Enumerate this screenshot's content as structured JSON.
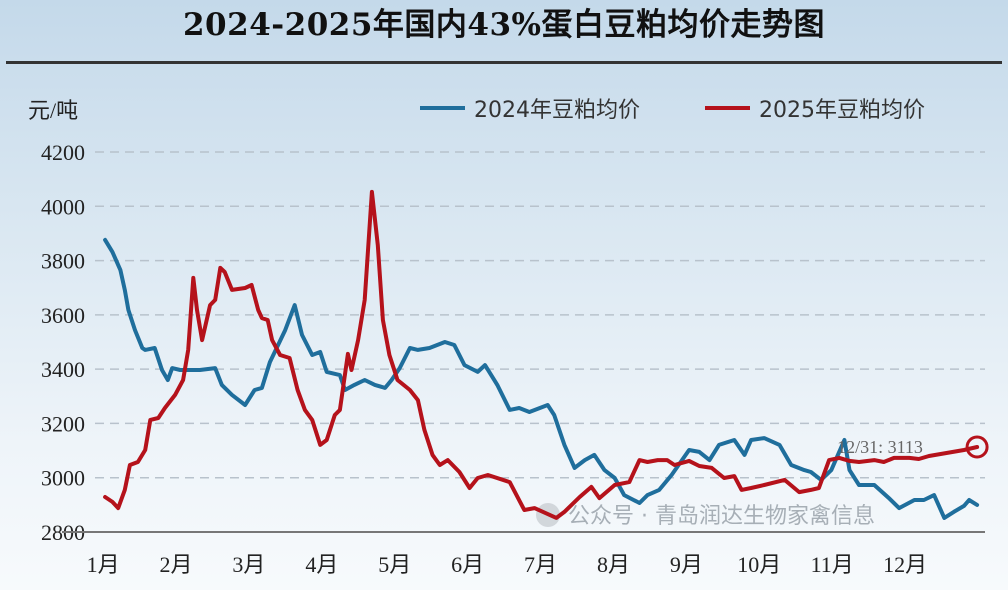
{
  "chart_data": {
    "type": "line",
    "title": "2024-2025年国内43%蛋白豆粕均价走势图",
    "ylabel": "元/吨",
    "xlabel": "",
    "ylim": [
      2800,
      4200
    ],
    "yticks": [
      2800,
      3000,
      3200,
      3400,
      3600,
      3800,
      4000,
      4200
    ],
    "xlim": [
      0.93,
      13.0
    ],
    "xticks": [
      1,
      2,
      3,
      4,
      5,
      6,
      7,
      8,
      9,
      10,
      11,
      12
    ],
    "xtick_labels": [
      "1月",
      "2月",
      "3月",
      "4月",
      "5月",
      "6月",
      "7月",
      "8月",
      "9月",
      "10月",
      "11月",
      "12月"
    ],
    "grid": "horizontal dashed",
    "legend_position": "top-right",
    "series": [
      {
        "name": "2024年豆粕均价",
        "color": "#1f6e9c",
        "x": [
          1.0,
          1.1,
          1.21,
          1.27,
          1.32,
          1.41,
          1.51,
          1.55,
          1.68,
          1.78,
          1.86,
          1.92,
          2.03,
          2.3,
          2.51,
          2.6,
          2.74,
          2.92,
          3.05,
          3.15,
          3.26,
          3.47,
          3.6,
          3.7,
          3.84,
          3.95,
          4.04,
          4.22,
          4.29,
          4.42,
          4.56,
          4.7,
          4.84,
          4.93,
          5.04,
          5.18,
          5.29,
          5.45,
          5.66,
          5.79,
          5.93,
          6.11,
          6.21,
          6.38,
          6.55,
          6.68,
          6.82,
          7.07,
          7.16,
          7.3,
          7.44,
          7.58,
          7.71,
          7.85,
          7.99,
          8.12,
          8.33,
          8.44,
          8.6,
          8.77,
          9.01,
          9.15,
          9.29,
          9.42,
          9.63,
          9.77,
          9.86,
          10.04,
          10.25,
          10.41,
          10.59,
          10.68,
          10.82,
          10.96,
          11.14,
          11.21,
          11.34,
          11.55,
          11.75,
          11.89,
          12.1,
          12.23,
          12.37,
          12.51,
          12.64,
          12.78,
          12.85,
          12.96
        ],
        "y": [
          3876,
          3832,
          3765,
          3692,
          3618,
          3544,
          3478,
          3471,
          3478,
          3397,
          3360,
          3404,
          3397,
          3397,
          3404,
          3342,
          3305,
          3268,
          3323,
          3331,
          3426,
          3544,
          3636,
          3526,
          3452,
          3463,
          3390,
          3378,
          3323,
          3342,
          3360,
          3342,
          3331,
          3360,
          3404,
          3478,
          3471,
          3478,
          3500,
          3489,
          3415,
          3390,
          3415,
          3342,
          3250,
          3257,
          3242,
          3268,
          3231,
          3121,
          3036,
          3065,
          3084,
          3028,
          2999,
          2936,
          2907,
          2936,
          2955,
          3010,
          3102,
          3095,
          3065,
          3121,
          3139,
          3084,
          3139,
          3146,
          3121,
          3047,
          3028,
          3021,
          2992,
          3028,
          3139,
          3028,
          2973,
          2973,
          2925,
          2888,
          2918,
          2918,
          2936,
          2852,
          2874,
          2896,
          2918,
          2900
        ]
      },
      {
        "name": "2025年豆粕均价",
        "color": "#b5121b",
        "x": [
          1.0,
          1.1,
          1.18,
          1.27,
          1.34,
          1.45,
          1.55,
          1.62,
          1.73,
          1.82,
          1.96,
          2.07,
          2.14,
          2.21,
          2.26,
          2.33,
          2.44,
          2.51,
          2.58,
          2.64,
          2.74,
          2.92,
          3.01,
          3.1,
          3.15,
          3.23,
          3.29,
          3.4,
          3.53,
          3.64,
          3.74,
          3.84,
          3.95,
          4.04,
          4.15,
          4.22,
          4.33,
          4.38,
          4.47,
          4.56,
          4.66,
          4.74,
          4.81,
          4.9,
          5.01,
          5.18,
          5.29,
          5.38,
          5.49,
          5.59,
          5.7,
          5.86,
          6.0,
          6.11,
          6.25,
          6.55,
          6.75,
          6.89,
          7.19,
          7.3,
          7.51,
          7.67,
          7.78,
          7.99,
          8.19,
          8.33,
          8.44,
          8.58,
          8.71,
          8.81,
          9.01,
          9.15,
          9.32,
          9.49,
          9.63,
          9.73,
          9.86,
          10.04,
          10.32,
          10.52,
          10.68,
          10.79,
          10.93,
          11.07,
          11.21,
          11.34,
          11.55,
          11.68,
          11.82,
          12.03,
          12.16,
          12.3,
          12.78,
          12.96
        ],
        "y": [
          2929,
          2911,
          2888,
          2955,
          3047,
          3058,
          3102,
          3213,
          3220,
          3257,
          3305,
          3360,
          3471,
          3736,
          3618,
          3507,
          3636,
          3655,
          3773,
          3758,
          3692,
          3699,
          3710,
          3618,
          3588,
          3581,
          3507,
          3452,
          3441,
          3323,
          3250,
          3213,
          3121,
          3139,
          3231,
          3250,
          3456,
          3397,
          3507,
          3655,
          4053,
          3857,
          3581,
          3452,
          3360,
          3323,
          3286,
          3176,
          3084,
          3047,
          3065,
          3021,
          2962,
          2999,
          3010,
          2984,
          2881,
          2888,
          2852,
          2874,
          2929,
          2966,
          2925,
          2973,
          2984,
          3065,
          3058,
          3065,
          3065,
          3047,
          3062,
          3043,
          3036,
          2999,
          3006,
          2955,
          2962,
          2973,
          2992,
          2947,
          2955,
          2962,
          3065,
          3073,
          3062,
          3058,
          3065,
          3058,
          3073,
          3073,
          3069,
          3080,
          3102,
          3113
        ]
      }
    ],
    "annotations": [
      {
        "text": "12/31: 3113",
        "series": "2025年豆粕均价",
        "x": 12.96,
        "y": 3113
      }
    ]
  },
  "watermark": "公众号 · 青岛润达生物家禽信息"
}
